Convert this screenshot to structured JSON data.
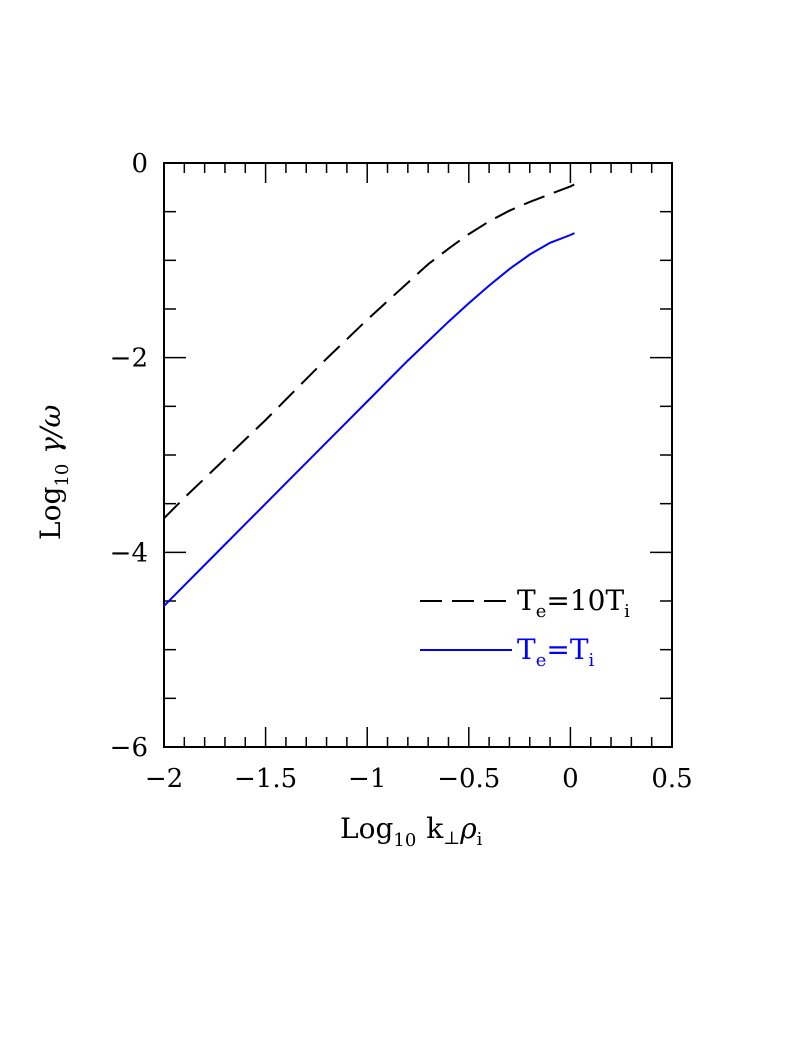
{
  "chart_data": {
    "type": "line",
    "title": "",
    "xlabel": {
      "main": "Log",
      "sub": "10",
      "rest": "k",
      "perp": "⊥",
      "rho": "ρ",
      "rho_sub": "i"
    },
    "ylabel": {
      "main": "Log",
      "sub": "10",
      "rest": "γ/ω"
    },
    "xlim": [
      -2,
      0.5
    ],
    "ylim": [
      -6,
      0
    ],
    "x_ticks": [
      -2,
      -1.5,
      -1,
      -0.5,
      0,
      0.5
    ],
    "x_tick_labels": [
      "−2",
      "−1.5",
      "−1",
      "−0.5",
      "0",
      "0.5"
    ],
    "y_ticks": [
      -6,
      -4,
      -2,
      0
    ],
    "y_tick_labels": [
      "−6",
      "−4",
      "−2",
      "0"
    ],
    "grid": false,
    "legend_position": "lower-right",
    "series": [
      {
        "name": "Te=10Ti",
        "legend": {
          "T1": "T",
          "s1": "e",
          "eq": "=",
          "coef": "10",
          "T2": "T",
          "s2": "i"
        },
        "color": "#000000",
        "style": "dashed",
        "x": [
          -2.0,
          -1.9,
          -1.8,
          -1.7,
          -1.6,
          -1.5,
          -1.4,
          -1.3,
          -1.2,
          -1.1,
          -1.0,
          -0.9,
          -0.8,
          -0.7,
          -0.6,
          -0.5,
          -0.4,
          -0.3,
          -0.2,
          -0.1,
          0.0,
          0.02
        ],
        "y": [
          -3.65,
          -3.44,
          -3.24,
          -3.04,
          -2.84,
          -2.64,
          -2.43,
          -2.22,
          -2.01,
          -1.81,
          -1.61,
          -1.42,
          -1.23,
          -1.04,
          -0.88,
          -0.73,
          -0.6,
          -0.49,
          -0.4,
          -0.32,
          -0.24,
          -0.22
        ]
      },
      {
        "name": "Te=Ti",
        "legend": {
          "T1": "T",
          "s1": "e",
          "eq": "=",
          "T2": "T",
          "s2": "i"
        },
        "color": "#0000ff",
        "style": "solid",
        "x": [
          -2.0,
          -1.9,
          -1.8,
          -1.7,
          -1.6,
          -1.5,
          -1.4,
          -1.3,
          -1.2,
          -1.1,
          -1.0,
          -0.9,
          -0.8,
          -0.7,
          -0.6,
          -0.5,
          -0.4,
          -0.3,
          -0.2,
          -0.1,
          0.0,
          0.02
        ],
        "y": [
          -4.55,
          -4.34,
          -4.13,
          -3.92,
          -3.71,
          -3.5,
          -3.29,
          -3.08,
          -2.87,
          -2.66,
          -2.45,
          -2.24,
          -2.03,
          -1.83,
          -1.63,
          -1.44,
          -1.26,
          -1.09,
          -0.94,
          -0.82,
          -0.74,
          -0.72
        ]
      }
    ]
  }
}
